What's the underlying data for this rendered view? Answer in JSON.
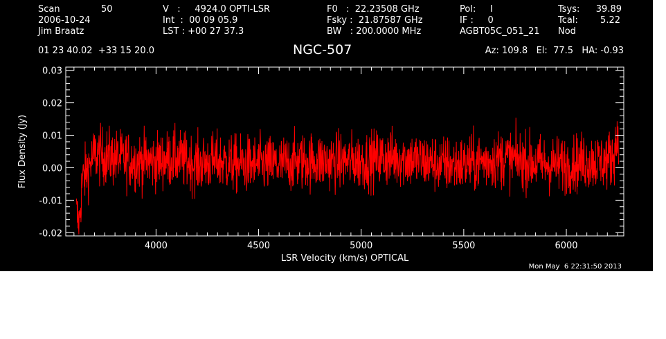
{
  "header": {
    "col1": [
      "Scan",
      "2006-10-24",
      "Jim Braatz"
    ],
    "scan_number": "50",
    "col2": [
      "V   :     4924.0 OPTI-LSR",
      "Int  :  00 09 05.9",
      "LST : +00 27 37.3"
    ],
    "col3": [
      "F0   :  22.23508 GHz",
      "Fsky :  21.87587 GHz",
      "BW   : 200.0000 MHz"
    ],
    "col4": [
      "Pol:     I",
      "IF :     0",
      "AGBT05C_051_21"
    ],
    "col5_labels": [
      "Tsys:",
      "Tcal:",
      "Nod"
    ],
    "col5_values": [
      "39.89",
      "5.22"
    ],
    "coords": "01 23 40.02  +33 15 20.0",
    "source": "NGC-507",
    "pointing": "Az: 109.8   El:  77.5   HA: -0.93",
    "timestamp": "Mon May  6 22:31:50 2013"
  },
  "chart_data": {
    "type": "line",
    "title": "NGC-507",
    "xlabel": "LSR Velocity (km/s) OPTICAL",
    "ylabel": "Flux Density (Jy)",
    "xlim": [
      3560,
      6280
    ],
    "ylim": [
      -0.021,
      0.031
    ],
    "xticks": [
      4000,
      4500,
      5000,
      5500,
      6000
    ],
    "xtick_labels": [
      "4000",
      "4500",
      "5000",
      "5500",
      "6000"
    ],
    "yticks": [
      -0.02,
      -0.01,
      0.0,
      0.01,
      0.02,
      0.03
    ],
    "ytick_labels": [
      "-0.02",
      "-0.01",
      "0.00",
      "0.01",
      "0.02",
      "0.03"
    ],
    "grid": false,
    "series": [
      {
        "color": "#ff0000",
        "x_range": [
          3612,
          6255
        ],
        "description_points": {
          "x": [
            3612,
            3625,
            3640,
            3700,
            3800,
            3900,
            4000,
            4100,
            4200,
            4300,
            4400,
            4500,
            4600,
            4700,
            4800,
            4900,
            5000,
            5100,
            5200,
            5300,
            5400,
            5500,
            5600,
            5700,
            5800,
            5900,
            6000,
            6100,
            6200,
            6230,
            6245,
            6255
          ],
          "y": [
            -0.014,
            -0.018,
            -0.004,
            0.004,
            0.003,
            0.002,
            0.002,
            0.003,
            0.001,
            0.002,
            0.001,
            0.001,
            0.001,
            0.002,
            0.002,
            0.002,
            0.002,
            0.003,
            0.003,
            0.002,
            0.001,
            0.001,
            0.002,
            0.003,
            0.002,
            0.001,
            0.001,
            0.002,
            0.002,
            0.004,
            0.008,
            0.012
          ]
        },
        "noise_rms": 0.0045
      }
    ]
  },
  "colors": {
    "background": "#000000",
    "foreground": "#ffffff",
    "trace": "#ff0000"
  }
}
